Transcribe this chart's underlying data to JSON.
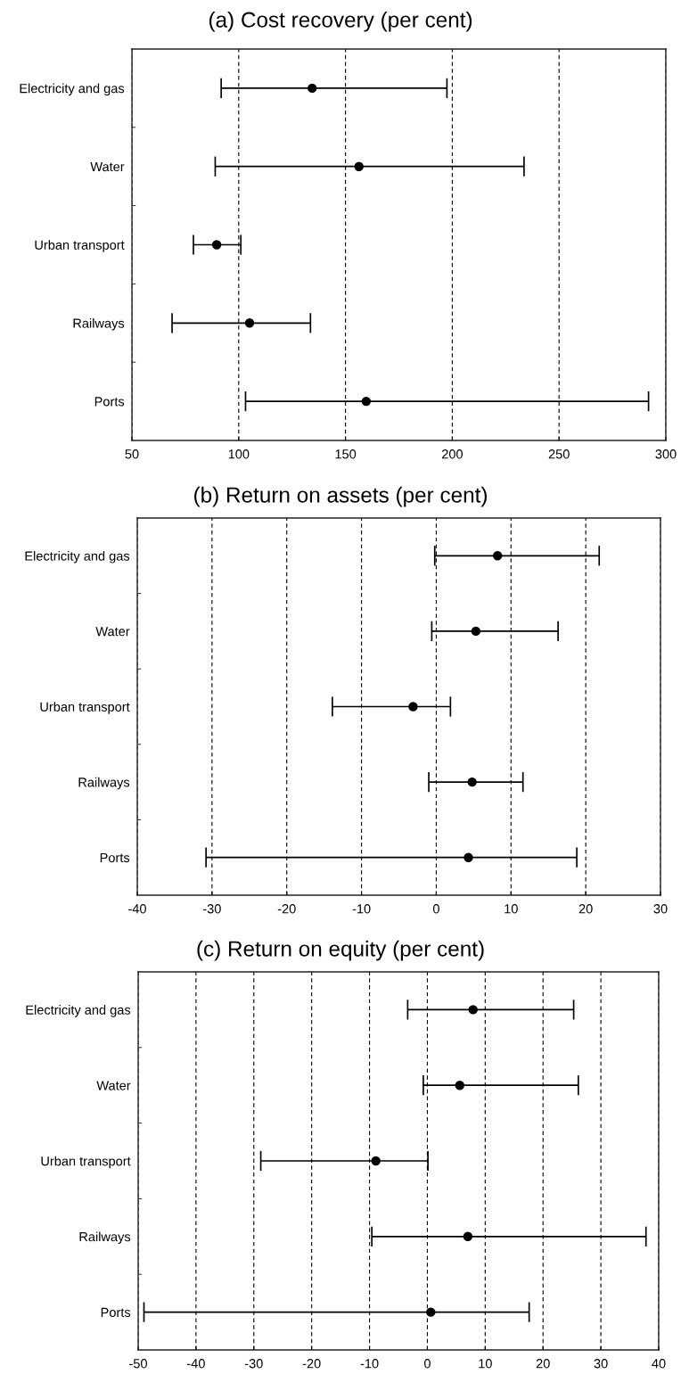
{
  "chart_data": [
    {
      "type": "scatter",
      "title": "(a) Cost recovery (per cent)",
      "orientation": "horizontal",
      "categories": [
        "Electricity and gas",
        "Water",
        "Urban transport",
        "Railways",
        "Ports"
      ],
      "values": [
        134.4,
        156.3,
        89.7,
        105.1,
        159.7
      ],
      "errors": [
        [
          91.8,
          197.5
        ],
        [
          89.0,
          233.6
        ],
        [
          78.8,
          101.0
        ],
        [
          68.8,
          133.6
        ],
        [
          103.2,
          291.9
        ]
      ],
      "color": "#000000",
      "marker": "circle",
      "xlim": [
        50,
        300
      ],
      "xticks": [
        50,
        100,
        150,
        200,
        250,
        300
      ],
      "grid": "x"
    },
    {
      "type": "scatter",
      "title": "(b) Return on assets (per cent)",
      "orientation": "horizontal",
      "categories": [
        "Electricity and gas",
        "Water",
        "Urban transport",
        "Railways",
        "Ports"
      ],
      "values": [
        8.2,
        5.3,
        -3.1,
        4.8,
        4.3
      ],
      "errors": [
        [
          -0.2,
          21.8
        ],
        [
          -0.6,
          16.3
        ],
        [
          -13.9,
          1.9
        ],
        [
          -1.0,
          11.6
        ],
        [
          -30.8,
          18.8
        ]
      ],
      "color": "#000000",
      "marker": "circle",
      "xlim": [
        -40,
        30
      ],
      "xticks": [
        -40,
        -30,
        -20,
        -10,
        0,
        10,
        20,
        30
      ],
      "grid": "x"
    },
    {
      "type": "scatter",
      "title": "(c) Return on equity (per cent)",
      "orientation": "horizontal",
      "categories": [
        "Electricity and gas",
        "Water",
        "Urban transport",
        "Railways",
        "Ports"
      ],
      "values": [
        7.9,
        5.6,
        -8.9,
        7.0,
        0.6
      ],
      "errors": [
        [
          -3.4,
          25.3
        ],
        [
          -0.7,
          26.1
        ],
        [
          -28.8,
          0.1
        ],
        [
          -9.6,
          37.8
        ],
        [
          -49.0,
          17.6
        ]
      ],
      "color": "#000000",
      "marker": "circle",
      "xlim": [
        -50,
        40
      ],
      "xticks": [
        -50,
        -40,
        -30,
        -20,
        -10,
        0,
        10,
        20,
        30,
        40
      ],
      "grid": "x"
    }
  ]
}
